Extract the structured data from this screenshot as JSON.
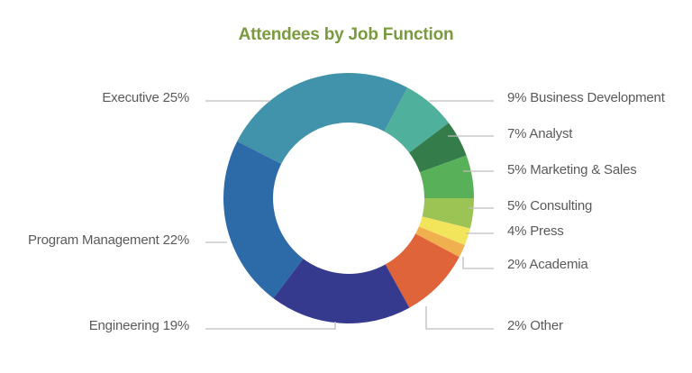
{
  "chart_data": {
    "type": "pie",
    "variant": "donut",
    "title": "Attendees by Job Function",
    "unit": "%",
    "slices": [
      {
        "label": "Executive",
        "value": 25,
        "color": "#4093ab",
        "text": "Executive 25%",
        "side": "left"
      },
      {
        "label": "Business Development",
        "value": 9,
        "color": "#4fb09c",
        "text": "9% Business Development",
        "side": "right"
      },
      {
        "label": "Analyst",
        "value": 7,
        "color": "#347d4a",
        "text": "7% Analyst",
        "side": "right"
      },
      {
        "label": "Marketing & Sales",
        "value": 5,
        "color": "#58b058",
        "text": "5% Marketing & Sales",
        "side": "right"
      },
      {
        "label": "Consulting",
        "value": 5,
        "color": "#9bc455",
        "text": "5% Consulting",
        "side": "right"
      },
      {
        "label": "Press",
        "value": 4,
        "color": "#f2e55c",
        "text": "4% Press",
        "side": "right"
      },
      {
        "label": "Academia",
        "value": 2,
        "color": "#f0b050",
        "text": "2% Academia",
        "side": "right"
      },
      {
        "label": "Other",
        "value": 2,
        "color": "#e0643a",
        "text": "2% Other",
        "side": "right"
      },
      {
        "label": "Engineering",
        "value": 19,
        "color": "#363a8f",
        "text": "Engineering 19%",
        "side": "left"
      },
      {
        "label": "Program Management",
        "value": 22,
        "color": "#2d6aa8",
        "text": "Program Management 22%",
        "side": "left"
      }
    ],
    "legend_position": "callout labels (left and right)"
  },
  "title_color": "#7a9a3e",
  "label_color": "#5a5a5a",
  "leader_color": "#bdbdbd"
}
